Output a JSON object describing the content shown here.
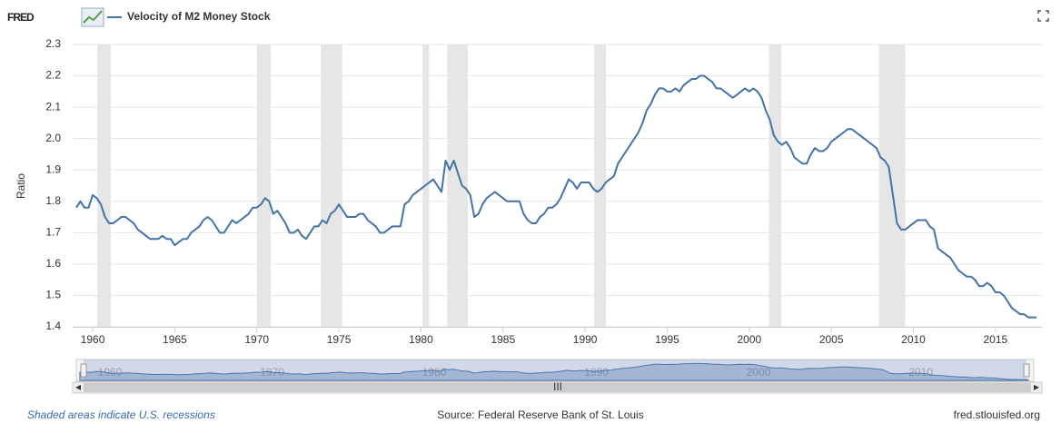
{
  "brand": "FRED",
  "chart_data": {
    "type": "line",
    "y_label": "Ratio",
    "series": [
      {
        "name": "Velocity of M2 Money Stock",
        "color": "#4572a7",
        "x": [
          1959,
          1959.25,
          1959.5,
          1959.75,
          1960,
          1960.25,
          1960.5,
          1960.75,
          1961,
          1961.25,
          1961.5,
          1961.75,
          1962,
          1962.25,
          1962.5,
          1962.75,
          1963,
          1963.25,
          1963.5,
          1963.75,
          1964,
          1964.25,
          1964.5,
          1964.75,
          1965,
          1965.25,
          1965.5,
          1965.75,
          1966,
          1966.25,
          1966.5,
          1966.75,
          1967,
          1967.25,
          1967.5,
          1967.75,
          1968,
          1968.25,
          1968.5,
          1968.75,
          1969,
          1969.25,
          1969.5,
          1969.75,
          1970,
          1970.25,
          1970.5,
          1970.75,
          1971,
          1971.25,
          1971.5,
          1971.75,
          1972,
          1972.25,
          1972.5,
          1972.75,
          1973,
          1973.25,
          1973.5,
          1973.75,
          1974,
          1974.25,
          1974.5,
          1974.75,
          1975,
          1975.25,
          1975.5,
          1975.75,
          1976,
          1976.25,
          1976.5,
          1976.75,
          1977,
          1977.25,
          1977.5,
          1977.75,
          1978,
          1978.25,
          1978.5,
          1978.75,
          1979,
          1979.25,
          1979.5,
          1979.75,
          1980,
          1980.25,
          1980.5,
          1980.75,
          1981,
          1981.25,
          1981.5,
          1981.75,
          1982,
          1982.25,
          1982.5,
          1982.75,
          1983,
          1983.25,
          1983.5,
          1983.75,
          1984,
          1984.25,
          1984.5,
          1984.75,
          1985,
          1985.25,
          1985.5,
          1985.75,
          1986,
          1986.25,
          1986.5,
          1986.75,
          1987,
          1987.25,
          1987.5,
          1987.75,
          1988,
          1988.25,
          1988.5,
          1988.75,
          1989,
          1989.25,
          1989.5,
          1989.75,
          1990,
          1990.25,
          1990.5,
          1990.75,
          1991,
          1991.25,
          1991.5,
          1991.75,
          1992,
          1992.25,
          1992.5,
          1992.75,
          1993,
          1993.25,
          1993.5,
          1993.75,
          1994,
          1994.25,
          1994.5,
          1994.75,
          1995,
          1995.25,
          1995.5,
          1995.75,
          1996,
          1996.25,
          1996.5,
          1996.75,
          1997,
          1997.25,
          1997.5,
          1997.75,
          1998,
          1998.25,
          1998.5,
          1998.75,
          1999,
          1999.25,
          1999.5,
          1999.75,
          2000,
          2000.25,
          2000.5,
          2000.75,
          2001,
          2001.25,
          2001.5,
          2001.75,
          2002,
          2002.25,
          2002.5,
          2002.75,
          2003,
          2003.25,
          2003.5,
          2003.75,
          2004,
          2004.25,
          2004.5,
          2004.75,
          2005,
          2005.25,
          2005.5,
          2005.75,
          2006,
          2006.25,
          2006.5,
          2006.75,
          2007,
          2007.25,
          2007.5,
          2007.75,
          2008,
          2008.25,
          2008.5,
          2008.75,
          2009,
          2009.25,
          2009.5,
          2009.75,
          2010,
          2010.25,
          2010.5,
          2010.75,
          2011,
          2011.25,
          2011.5,
          2011.75,
          2012,
          2012.25,
          2012.5,
          2012.75,
          2013,
          2013.25,
          2013.5,
          2013.75,
          2014,
          2014.25,
          2014.5,
          2014.75,
          2015,
          2015.25,
          2015.5,
          2015.75,
          2016,
          2016.25,
          2016.5,
          2016.75,
          2017,
          2017.25,
          2017.5
        ],
        "values": [
          1.78,
          1.8,
          1.78,
          1.78,
          1.82,
          1.81,
          1.79,
          1.75,
          1.73,
          1.73,
          1.74,
          1.75,
          1.75,
          1.74,
          1.73,
          1.71,
          1.7,
          1.69,
          1.68,
          1.68,
          1.68,
          1.69,
          1.68,
          1.68,
          1.66,
          1.67,
          1.68,
          1.68,
          1.7,
          1.71,
          1.72,
          1.74,
          1.75,
          1.74,
          1.72,
          1.7,
          1.7,
          1.72,
          1.74,
          1.73,
          1.74,
          1.75,
          1.76,
          1.78,
          1.78,
          1.79,
          1.81,
          1.8,
          1.76,
          1.77,
          1.75,
          1.73,
          1.7,
          1.7,
          1.71,
          1.69,
          1.68,
          1.7,
          1.72,
          1.72,
          1.74,
          1.73,
          1.76,
          1.77,
          1.79,
          1.77,
          1.75,
          1.75,
          1.75,
          1.76,
          1.76,
          1.74,
          1.73,
          1.72,
          1.7,
          1.7,
          1.71,
          1.72,
          1.72,
          1.72,
          1.79,
          1.8,
          1.82,
          1.83,
          1.84,
          1.85,
          1.86,
          1.87,
          1.85,
          1.83,
          1.93,
          1.9,
          1.93,
          1.89,
          1.85,
          1.84,
          1.82,
          1.75,
          1.76,
          1.79,
          1.81,
          1.82,
          1.83,
          1.82,
          1.81,
          1.8,
          1.8,
          1.8,
          1.8,
          1.76,
          1.74,
          1.73,
          1.73,
          1.75,
          1.76,
          1.78,
          1.78,
          1.79,
          1.81,
          1.84,
          1.87,
          1.86,
          1.84,
          1.86,
          1.86,
          1.86,
          1.84,
          1.83,
          1.84,
          1.86,
          1.87,
          1.88,
          1.92,
          1.94,
          1.96,
          1.98,
          2.0,
          2.02,
          2.05,
          2.09,
          2.11,
          2.14,
          2.16,
          2.16,
          2.15,
          2.15,
          2.16,
          2.15,
          2.17,
          2.18,
          2.19,
          2.19,
          2.2,
          2.2,
          2.19,
          2.18,
          2.16,
          2.16,
          2.15,
          2.14,
          2.13,
          2.14,
          2.15,
          2.16,
          2.15,
          2.16,
          2.15,
          2.13,
          2.09,
          2.06,
          2.01,
          1.99,
          1.98,
          1.99,
          1.97,
          1.94,
          1.93,
          1.92,
          1.92,
          1.95,
          1.97,
          1.96,
          1.96,
          1.97,
          1.99,
          2.0,
          2.01,
          2.02,
          2.03,
          2.03,
          2.02,
          2.01,
          2.0,
          1.99,
          1.98,
          1.97,
          1.94,
          1.93,
          1.91,
          1.82,
          1.73,
          1.71,
          1.71,
          1.72,
          1.73,
          1.74,
          1.74,
          1.74,
          1.72,
          1.71,
          1.65,
          1.64,
          1.63,
          1.62,
          1.6,
          1.58,
          1.57,
          1.56,
          1.56,
          1.55,
          1.53,
          1.53,
          1.54,
          1.53,
          1.51,
          1.51,
          1.5,
          1.48,
          1.46,
          1.45,
          1.44,
          1.44,
          1.43,
          1.43,
          1.43
        ]
      }
    ],
    "recessions": [
      [
        1960.28,
        1961.1
      ],
      [
        1970.0,
        1970.85
      ],
      [
        1973.9,
        1975.2
      ],
      [
        1980.1,
        1980.5
      ],
      [
        1981.6,
        1982.85
      ],
      [
        1990.55,
        1991.27
      ],
      [
        2001.2,
        2001.95
      ],
      [
        2007.9,
        2009.5
      ]
    ],
    "xlim": [
      1958.78,
      2017.83
    ],
    "xticks": [
      1960,
      1965,
      1970,
      1975,
      1980,
      1985,
      1990,
      1995,
      2000,
      2005,
      2010,
      2015
    ],
    "ylim": [
      1.4,
      2.3
    ],
    "yticks": [
      1.4,
      1.5,
      1.6,
      1.7,
      1.8,
      1.9,
      {
        "value": 2,
        "label": "2.0"
      },
      2.1,
      2.2,
      2.3
    ],
    "grid": true,
    "recession_note": "Shaded areas indicate U.S. recessions",
    "source": "Source: Federal Reserve Bank of St. Louis",
    "site": "fred.stlouisfed.org"
  }
}
